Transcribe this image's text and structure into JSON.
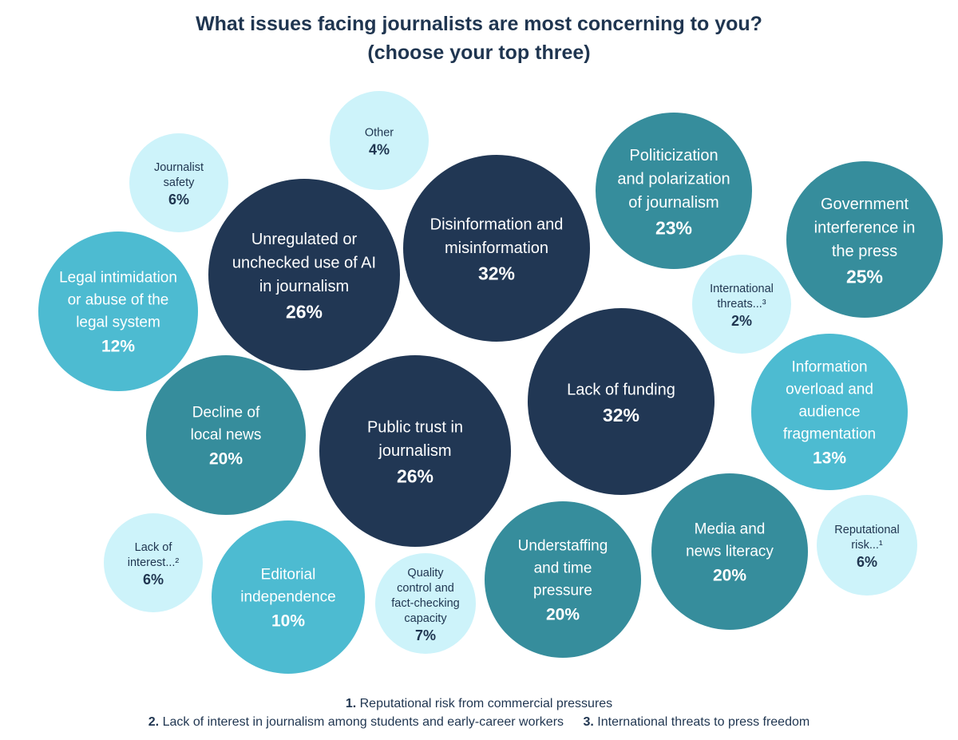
{
  "title": {
    "line1": "What issues facing journalists are most concerning to you?",
    "line2": "(choose your top three)"
  },
  "colors": {
    "dark": "#213754",
    "mid": "#368d9c",
    "light": "#4dbbd1",
    "pale": "#cdf3fa",
    "text_dark_bg": "#ffffff",
    "text_light_bg": "#1f3550"
  },
  "chart_data": {
    "type": "bubble",
    "title": "What issues facing journalists are most concerning to you? (choose your top three)",
    "unit": "%",
    "bubbles": [
      {
        "label_lines": [
          "Other"
        ],
        "value": 4,
        "value_label": "4%",
        "tone": "pale"
      },
      {
        "label_lines": [
          "Journalist",
          "safety"
        ],
        "value": 6,
        "value_label": "6%",
        "tone": "pale"
      },
      {
        "label_lines": [
          "Disinformation and",
          "misinformation"
        ],
        "value": 32,
        "value_label": "32%",
        "tone": "dark"
      },
      {
        "label_lines": [
          "Politicization",
          "and polarization",
          "of journalism"
        ],
        "value": 23,
        "value_label": "23%",
        "tone": "mid"
      },
      {
        "label_lines": [
          "Government",
          "interference in",
          "the press"
        ],
        "value": 25,
        "value_label": "25%",
        "tone": "mid"
      },
      {
        "label_lines": [
          "Unregulated or",
          "unchecked use of AI",
          "in journalism"
        ],
        "value": 26,
        "value_label": "26%",
        "tone": "dark"
      },
      {
        "label_lines": [
          "Legal intimidation",
          "or abuse of the",
          "legal system"
        ],
        "value": 12,
        "value_label": "12%",
        "tone": "light"
      },
      {
        "label_lines": [
          "International",
          "threats...³"
        ],
        "value": 2,
        "value_label": "2%",
        "tone": "pale"
      },
      {
        "label_lines": [
          "Lack of funding"
        ],
        "value": 32,
        "value_label": "32%",
        "tone": "dark"
      },
      {
        "label_lines": [
          "Information",
          "overload and",
          "audience",
          "fragmentation"
        ],
        "value": 13,
        "value_label": "13%",
        "tone": "light"
      },
      {
        "label_lines": [
          "Decline of",
          "local news"
        ],
        "value": 20,
        "value_label": "20%",
        "tone": "mid"
      },
      {
        "label_lines": [
          "Public trust in",
          "journalism"
        ],
        "value": 26,
        "value_label": "26%",
        "tone": "dark"
      },
      {
        "label_lines": [
          "Media and",
          "news literacy"
        ],
        "value": 20,
        "value_label": "20%",
        "tone": "mid"
      },
      {
        "label_lines": [
          "Reputational",
          "risk...¹"
        ],
        "value": 6,
        "value_label": "6%",
        "tone": "pale"
      },
      {
        "label_lines": [
          "Lack of",
          "interest...²"
        ],
        "value": 6,
        "value_label": "6%",
        "tone": "pale"
      },
      {
        "label_lines": [
          "Editorial",
          "independence"
        ],
        "value": 10,
        "value_label": "10%",
        "tone": "light"
      },
      {
        "label_lines": [
          "Quality",
          "control and",
          "fact-checking",
          "capacity"
        ],
        "value": 7,
        "value_label": "7%",
        "tone": "pale"
      },
      {
        "label_lines": [
          "Understaffing",
          "and time",
          "pressure"
        ],
        "value": 20,
        "value_label": "20%",
        "tone": "mid"
      }
    ]
  },
  "footnotes": [
    {
      "num": "1.",
      "text": "Reputational risk from commercial pressures"
    },
    {
      "num": "2.",
      "text": "Lack of interest in journalism among students and early-career workers"
    },
    {
      "num": "3.",
      "text": "International threats to press freedom"
    }
  ]
}
